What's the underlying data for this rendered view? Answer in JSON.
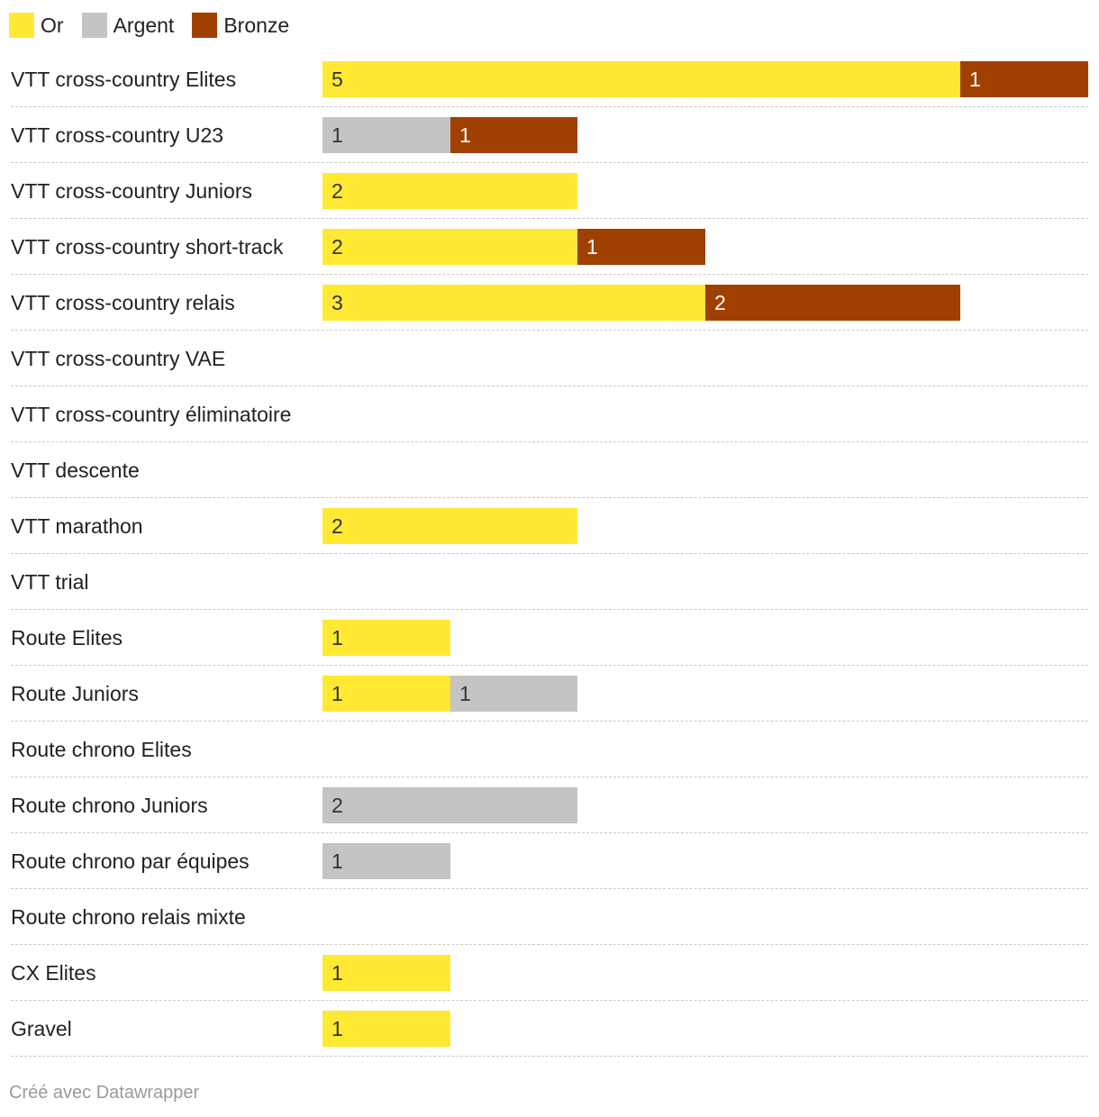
{
  "chart_data": {
    "type": "bar",
    "orientation": "horizontal",
    "stacked": true,
    "categories": [
      "VTT cross-country Elites",
      "VTT cross-country U23",
      "VTT cross-country Juniors",
      "VTT cross-country short-track",
      "VTT cross-country relais",
      "VTT cross-country VAE",
      "VTT cross-country éliminatoire",
      "VTT descente",
      "VTT marathon",
      "VTT trial",
      "Route Elites",
      "Route Juniors",
      "Route chrono Elites",
      "Route chrono Juniors",
      "Route chrono par équipes",
      "Route chrono relais mixte",
      "CX Elites",
      "Gravel"
    ],
    "series": [
      {
        "name": "Or",
        "color": "#ffe933",
        "text_color": "#333333",
        "values": [
          5,
          0,
          2,
          2,
          3,
          0,
          0,
          0,
          2,
          0,
          1,
          1,
          0,
          0,
          0,
          0,
          1,
          1
        ]
      },
      {
        "name": "Argent",
        "color": "#c4c4c4",
        "text_color": "#333333",
        "values": [
          0,
          1,
          0,
          0,
          0,
          0,
          0,
          0,
          0,
          0,
          0,
          1,
          0,
          2,
          1,
          0,
          0,
          0
        ]
      },
      {
        "name": "Bronze",
        "color": "#a04000",
        "text_color": "#ffffff",
        "values": [
          1,
          1,
          0,
          1,
          2,
          0,
          0,
          0,
          0,
          0,
          0,
          0,
          0,
          0,
          0,
          0,
          0,
          0
        ]
      }
    ],
    "xlim": [
      0,
      6
    ],
    "legend_position": "top-left",
    "grid": false
  },
  "legend": {
    "items": [
      {
        "label": "Or",
        "color": "#ffe933"
      },
      {
        "label": "Argent",
        "color": "#c4c4c4"
      },
      {
        "label": "Bronze",
        "color": "#a04000"
      }
    ]
  },
  "footer": {
    "text": "Créé avec Datawrapper"
  }
}
